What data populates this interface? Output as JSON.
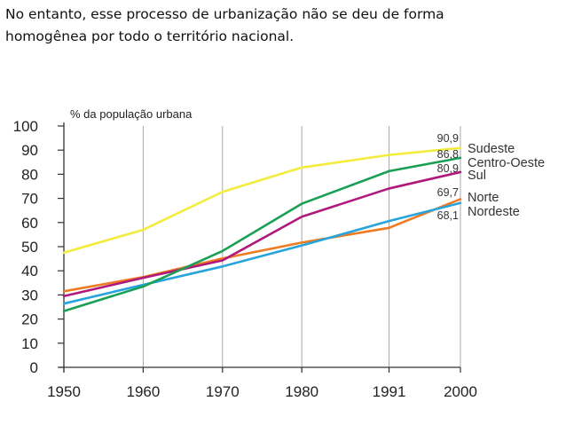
{
  "slide": {
    "line1": "No entanto, esse processo de urbanização não se deu de forma",
    "line2": "homogênea por todo o território nacional."
  },
  "chart_data": {
    "type": "line",
    "title": "",
    "ylabel": "% da população urbana",
    "xlabel": "",
    "x": [
      1950,
      1960,
      1970,
      1980,
      1991,
      2000
    ],
    "x_tick_labels": [
      "1950",
      "1960",
      "1970",
      "1980",
      "1991",
      "2000"
    ],
    "y_ticks": [
      0,
      10,
      20,
      30,
      40,
      50,
      60,
      70,
      80,
      90,
      100
    ],
    "y_tick_labels": [
      "0",
      "10",
      "20",
      "30",
      "40",
      "50",
      "60",
      "70",
      "80",
      "90",
      "100"
    ],
    "ylim": [
      0,
      100
    ],
    "grid": "vertical",
    "legend": "right",
    "series": [
      {
        "name": "Sudeste",
        "color": "#f4ec3c",
        "values": [
          47.5,
          57,
          72.7,
          82.8,
          88,
          90.9
        ],
        "end_label": "90,9"
      },
      {
        "name": "Centro-Oeste",
        "color": "#1aa055",
        "values": [
          23.3,
          33.5,
          48.2,
          67.8,
          81.3,
          86.8
        ],
        "end_label": "86,8"
      },
      {
        "name": "Sul",
        "color": "#b0197c",
        "values": [
          29.5,
          37.1,
          44.3,
          62.4,
          74.1,
          80.9
        ],
        "end_label": "80,9"
      },
      {
        "name": "Norte",
        "color": "#ee7b22",
        "values": [
          31.5,
          37.4,
          45.1,
          51.7,
          57.8,
          69.7
        ],
        "end_label": "69,7"
      },
      {
        "name": "Nordeste",
        "color": "#27a4dc",
        "values": [
          26.4,
          34.2,
          41.8,
          50.5,
          60.6,
          68.1
        ],
        "end_label": "68,1"
      }
    ]
  }
}
